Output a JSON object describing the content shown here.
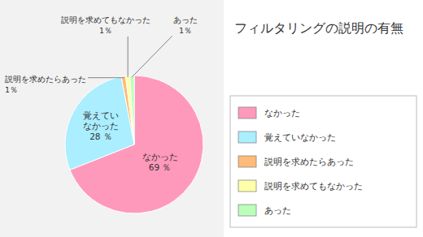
{
  "chart_data": {
    "type": "pie",
    "title": "フィルタリングの説明の有無",
    "categories": [
      "なかった",
      "覚えていなかった",
      "説明を求めたらあった",
      "説明を求めてもなかった",
      "あった"
    ],
    "values": [
      69,
      28,
      1,
      1,
      1
    ],
    "value_labels": [
      "69 ％",
      "28 ％",
      "1％",
      "1％",
      "1％"
    ],
    "colors": [
      "#FF99BB",
      "#AAEEFF",
      "#FFBB77",
      "#FFFFAA",
      "#BBFFBB"
    ],
    "data_labels": true,
    "legend": "right"
  }
}
